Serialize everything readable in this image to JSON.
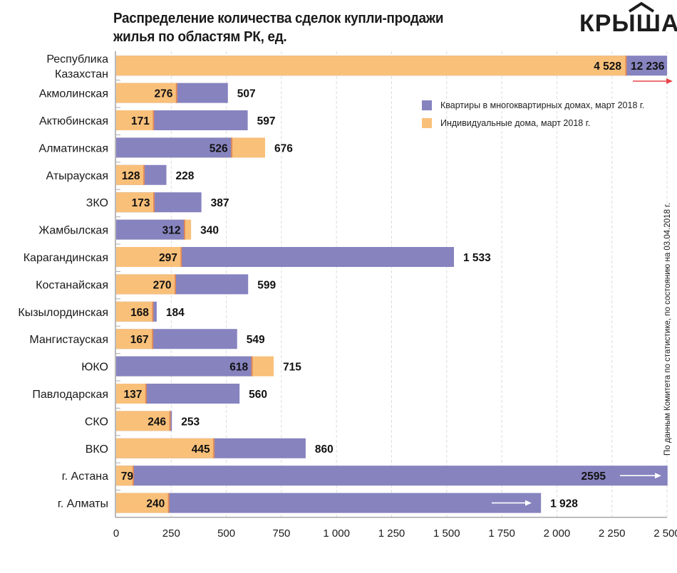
{
  "header": {
    "title_line1": "Распределение количества сделок купли-продажи",
    "title_line2": "жилья по областям РК, ед.",
    "logo": "КРЫША"
  },
  "legend": [
    {
      "label": "Квартиры в многоквартирных домах, март 2018 г.",
      "color": "#8683bf"
    },
    {
      "label": "Индивидуальные дома, март 2018 г.",
      "color": "#f9c07a"
    }
  ],
  "source_note": "По данным Комитета по статистике, по состоянию на 03.04.2018 г.",
  "chart_data": {
    "type": "bar",
    "orientation": "horizontal",
    "layout": "overlapping",
    "title": "Распределение количества сделок купли-продажи жилья по областям РК, ед.",
    "xlabel": "",
    "ylabel": "",
    "xlim": [
      0,
      2500
    ],
    "xticks": [
      0,
      250,
      500,
      750,
      1000,
      1250,
      1500,
      1750,
      2000,
      2250,
      2500
    ],
    "xtick_labels": [
      "0",
      "250",
      "500",
      "750",
      "1 000",
      "1 250",
      "1 500",
      "1 750",
      "2 000",
      "2 250",
      "2 500"
    ],
    "grid": "vertical-dashed",
    "legend_position": "top-right",
    "categories": [
      "Республика Казахстан",
      "Акмолинская",
      "Актюбинская",
      "Алматинская",
      "Атырауская",
      "ЗКО",
      "Жамбылская",
      "Карагандинская",
      "Костанайская",
      "Кызылординская",
      "Мангистауская",
      "ЮКО",
      "Павлодарская",
      "СКО",
      "ВКО",
      "г. Астана",
      "г. Алматы"
    ],
    "category_lines": [
      [
        "Республика",
        "Казахстан"
      ],
      [
        "Акмолинская"
      ],
      [
        "Актюбинская"
      ],
      [
        "Алматинская"
      ],
      [
        "Атырауская"
      ],
      [
        "ЗКО"
      ],
      [
        "Жамбылская"
      ],
      [
        "Карагандинская"
      ],
      [
        "Костанайская"
      ],
      [
        "Кызылординская"
      ],
      [
        "Мангистауская"
      ],
      [
        "ЮКО"
      ],
      [
        "Павлодарская"
      ],
      [
        "СКО"
      ],
      [
        "ВКО"
      ],
      [
        "г. Астана"
      ],
      [
        "г. Алматы"
      ]
    ],
    "series": [
      {
        "name": "Квартиры в многоквартирных домах, март 2018 г.",
        "color": "#8683bf",
        "values": [
          12236,
          507,
          597,
          526,
          228,
          387,
          312,
          1533,
          599,
          184,
          549,
          618,
          560,
          253,
          860,
          2595,
          1928
        ],
        "labels": [
          "12 236",
          "507",
          "597",
          "526",
          "228",
          "387",
          "312",
          "1 533",
          "599",
          "184",
          "549",
          "618",
          "560",
          "253",
          "860",
          "2595",
          "1 928"
        ]
      },
      {
        "name": "Индивидуальные дома, март 2018 г.",
        "color": "#f9c07a",
        "values": [
          4528,
          276,
          171,
          676,
          128,
          173,
          340,
          297,
          270,
          168,
          167,
          715,
          137,
          246,
          445,
          79,
          240
        ],
        "labels": [
          "4 528",
          "276",
          "171",
          "676",
          "128",
          "173",
          "340",
          "297",
          "270",
          "168",
          "167",
          "715",
          "137",
          "246",
          "445",
          "79",
          "240"
        ]
      }
    ],
    "annotations": [
      {
        "category": "Республика Казахстан",
        "type": "arrow",
        "note": "value exceeds axis",
        "color": "#e8454a"
      },
      {
        "category": "г. Астана",
        "type": "arrow",
        "note": "value exceeds axis",
        "color": "#ffffff"
      },
      {
        "category": "г. Алматы",
        "type": "arrow",
        "color": "#ffffff"
      }
    ]
  }
}
